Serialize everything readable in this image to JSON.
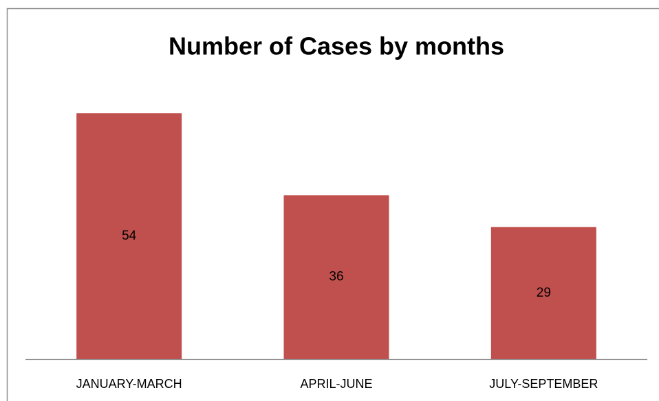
{
  "chart_data": {
    "type": "bar",
    "title": "Number of Cases by months",
    "categories": [
      "JANUARY-MARCH",
      "APRIL-JUNE",
      "JULY-SEPTEMBER"
    ],
    "values": [
      54,
      36,
      29
    ],
    "color": "#c0504d"
  }
}
